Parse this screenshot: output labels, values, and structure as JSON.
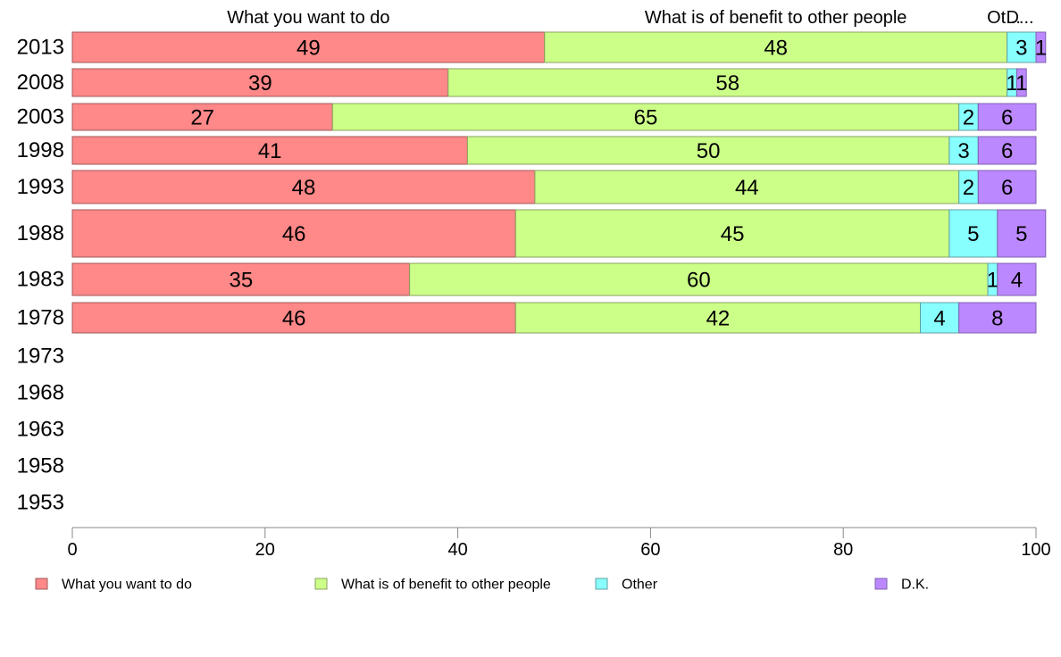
{
  "chart_data": {
    "type": "bar",
    "orientation": "horizontal",
    "stacked": true,
    "title": "",
    "xlabel": "",
    "ylabel": "",
    "xlim": [
      0,
      100
    ],
    "x_ticks": [
      "0",
      "20",
      "40",
      "60",
      "80",
      "100"
    ],
    "categories": [
      "2013",
      "2008",
      "2003",
      "1998",
      "1993",
      "1988",
      "1983",
      "1978",
      "1973",
      "1968",
      "1963",
      "1958",
      "1953"
    ],
    "series": [
      {
        "name": "What you want to do",
        "color": "#ff8888",
        "values": [
          49,
          39,
          27,
          41,
          48,
          46,
          35,
          46,
          null,
          null,
          null,
          null,
          null
        ]
      },
      {
        "name": "What is of benefit to other people",
        "color": "#ccff88",
        "values": [
          48,
          58,
          65,
          50,
          44,
          45,
          60,
          42,
          null,
          null,
          null,
          null,
          null
        ]
      },
      {
        "name": "Other",
        "color": "#88ffff",
        "values": [
          3,
          1,
          2,
          3,
          2,
          5,
          1,
          4,
          null,
          null,
          null,
          null,
          null
        ]
      },
      {
        "name": "D.K.",
        "color": "#bb88ff",
        "values": [
          1,
          1,
          6,
          6,
          6,
          5,
          4,
          8,
          null,
          null,
          null,
          null,
          null
        ]
      }
    ],
    "top_headers": [
      "What you want to do",
      "What is of benefit to other people",
      "Ot...",
      "D..."
    ],
    "legend": {
      "placement": "bottom",
      "entries": [
        "What you want to do",
        "What is of benefit to other people",
        "Other",
        "D.K."
      ]
    },
    "grid": false
  }
}
